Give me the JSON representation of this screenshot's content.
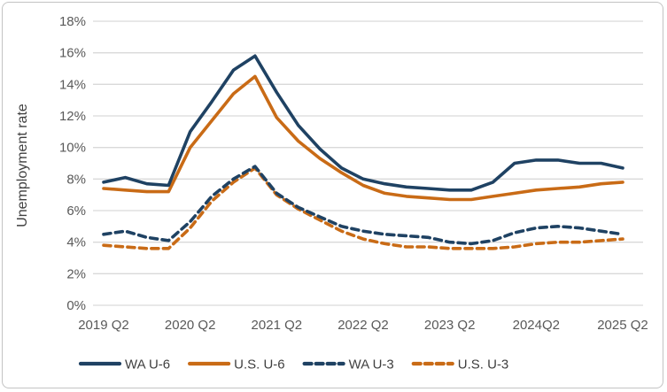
{
  "chart_data": {
    "type": "line",
    "title": "",
    "xlabel": "",
    "ylabel": "Unemployment rate",
    "ylim": [
      0,
      18
    ],
    "grid": "horizontal-only",
    "grid_color": "#d9d9d9",
    "legend_position": "bottom",
    "y_tick_labels": [
      "0%",
      "2%",
      "4%",
      "6%",
      "8%",
      "10%",
      "12%",
      "14%",
      "16%",
      "18%"
    ],
    "x_categories": [
      "2019 Q2",
      "2019 Q3",
      "2019 Q4",
      "2020 Q1",
      "2020 Q2",
      "2020 Q3",
      "2020 Q4",
      "2021 Q1",
      "2021 Q2",
      "2021 Q3",
      "2021 Q4",
      "2022 Q1",
      "2022 Q2",
      "2022 Q3",
      "2022 Q4",
      "2023 Q1",
      "2023 Q2",
      "2023 Q3",
      "2023 Q4",
      "2024 Q1",
      "2024 Q2",
      "2024 Q3",
      "2024 Q4",
      "2025 Q1",
      "2025 Q2"
    ],
    "x_tick_labels": [
      "2019 Q2",
      "2020 Q2",
      "2021 Q2",
      "2022 Q2",
      "2023 Q2",
      "2024Q2",
      "2025 Q2"
    ],
    "x_tick_indices": [
      0,
      4,
      8,
      12,
      16,
      20,
      24
    ],
    "series": [
      {
        "name": "WA U-6",
        "color": "#1f4263",
        "style": "solid",
        "values": [
          7.8,
          8.1,
          7.7,
          7.6,
          11.0,
          12.9,
          14.9,
          15.8,
          13.5,
          11.4,
          9.9,
          8.7,
          8.0,
          7.7,
          7.5,
          7.4,
          7.3,
          7.3,
          7.8,
          9.0,
          9.2,
          9.2,
          9.0,
          9.0,
          8.7
        ]
      },
      {
        "name": "U.S. U-6",
        "color": "#c96b16",
        "style": "solid",
        "values": [
          7.4,
          7.3,
          7.2,
          7.2,
          10.0,
          11.7,
          13.4,
          14.5,
          11.9,
          10.4,
          9.3,
          8.4,
          7.6,
          7.1,
          6.9,
          6.8,
          6.7,
          6.7,
          6.9,
          7.1,
          7.3,
          7.4,
          7.5,
          7.7,
          7.8
        ]
      },
      {
        "name": "WA U-3",
        "color": "#1f4263",
        "style": "dashed",
        "values": [
          4.5,
          4.7,
          4.3,
          4.1,
          5.3,
          6.9,
          8.0,
          8.8,
          7.1,
          6.2,
          5.6,
          5.0,
          4.7,
          4.5,
          4.4,
          4.3,
          4.0,
          3.9,
          4.1,
          4.6,
          4.9,
          5.0,
          4.9,
          4.7,
          4.5
        ]
      },
      {
        "name": "U.S. U-3",
        "color": "#c96b16",
        "style": "dashed",
        "values": [
          3.8,
          3.7,
          3.6,
          3.6,
          4.9,
          6.6,
          7.8,
          8.7,
          7.0,
          6.1,
          5.4,
          4.7,
          4.2,
          3.9,
          3.7,
          3.7,
          3.6,
          3.6,
          3.6,
          3.7,
          3.9,
          4.0,
          4.0,
          4.1,
          4.2
        ]
      }
    ]
  },
  "colors": {
    "navy": "#1f4263",
    "orange": "#c96b16",
    "tick_text": "#595959",
    "axis_title_text": "#404040",
    "gridline": "#d9d9d9",
    "frame_border": "#c3c3c3"
  }
}
